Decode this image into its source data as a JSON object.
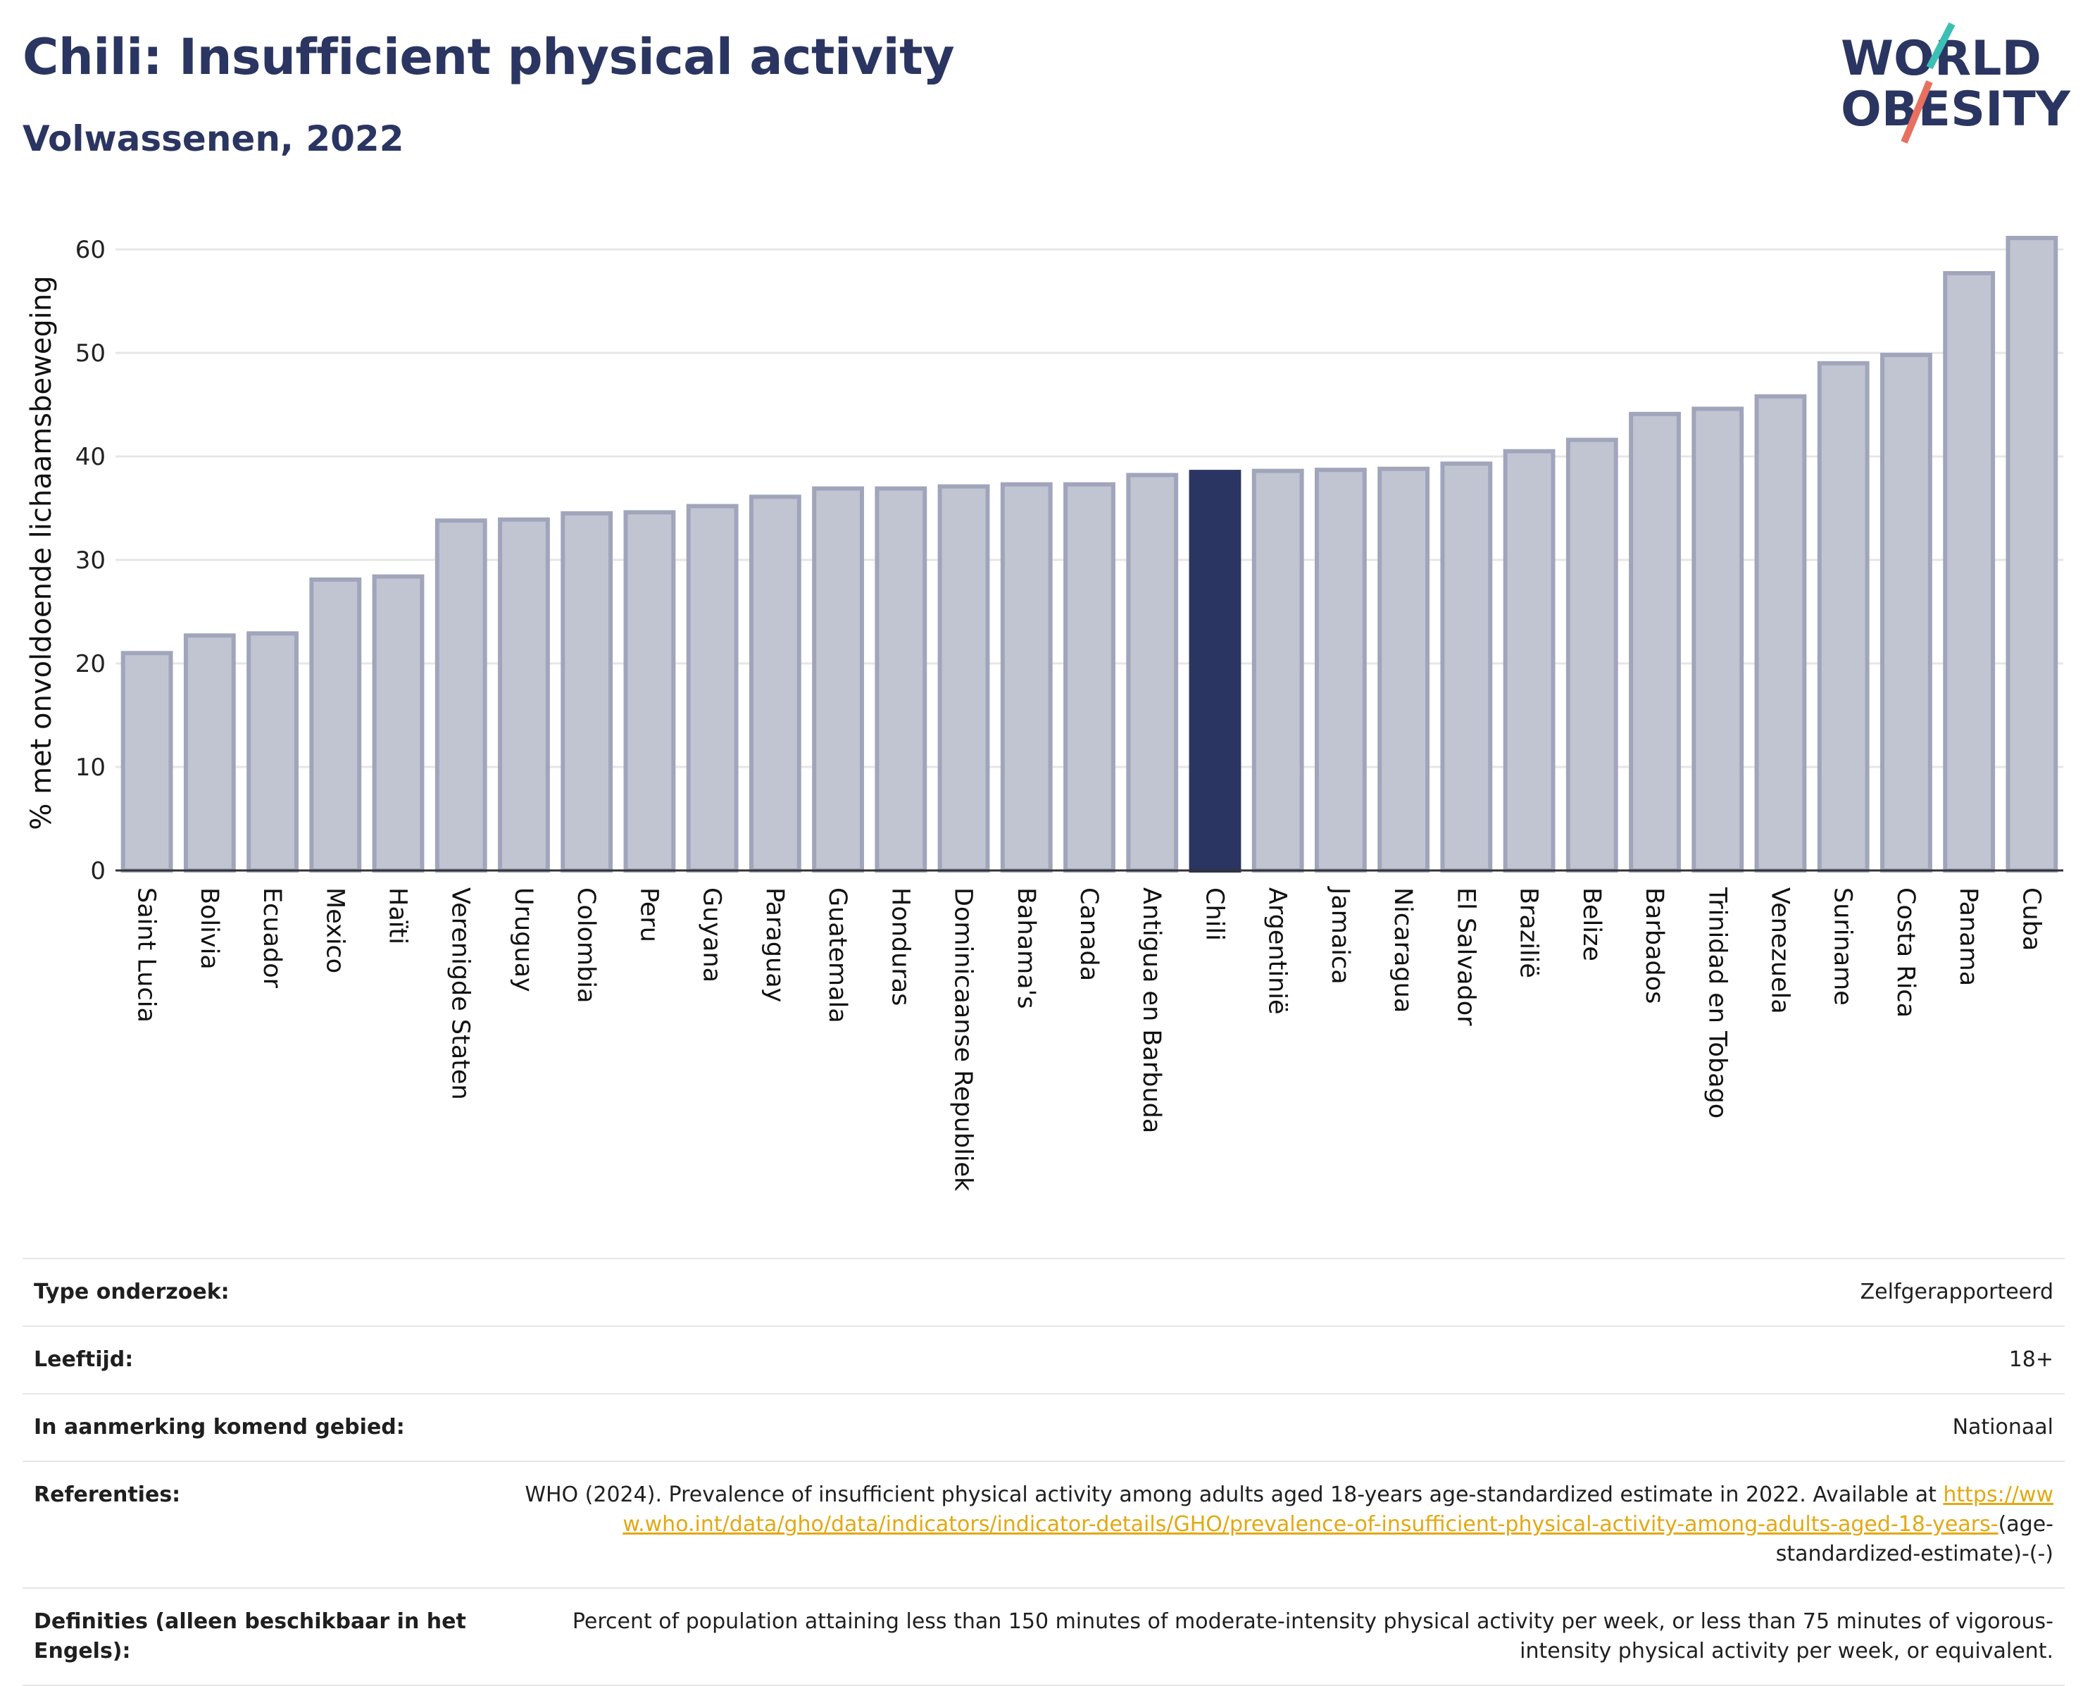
{
  "header": {
    "title": "Chili: Insufficient physical activity",
    "subtitle": "Volwassenen, 2022"
  },
  "logo": {
    "line1": "WORLD",
    "line2": "OBESITY",
    "accent_teal": "#3cbfb4",
    "accent_coral": "#e8705f",
    "text_color": "#2b3561"
  },
  "colors": {
    "bar": "#c1c4d1",
    "bar_border": "#a0a5bb",
    "highlight": "#2b3561",
    "grid": "#e6e6e6"
  },
  "chart_data": {
    "type": "bar",
    "title": "Chili: Insufficient physical activity",
    "subtitle": "Volwassenen, 2022",
    "xlabel": "",
    "ylabel": "% met onvoldoende lichaamsbeweging",
    "ylim": [
      0,
      63
    ],
    "yticks": [
      0,
      10,
      20,
      30,
      40,
      50,
      60
    ],
    "grid": true,
    "highlight": "Chili",
    "categories": [
      "Saint Lucia",
      "Bolivia",
      "Ecuador",
      "Mexico",
      "Haïti",
      "Verenigde Staten",
      "Uruguay",
      "Colombia",
      "Peru",
      "Guyana",
      "Paraguay",
      "Guatemala",
      "Honduras",
      "Dominicaanse Republiek",
      "Bahama's",
      "Canada",
      "Antigua en Barbuda",
      "Chili",
      "Argentinië",
      "Jamaica",
      "Nicaragua",
      "El Salvador",
      "Brazilië",
      "Belize",
      "Barbados",
      "Trinidad en Tobago",
      "Venezuela",
      "Suriname",
      "Costa Rica",
      "Panama",
      "Cuba"
    ],
    "values": [
      21.0,
      22.7,
      22.9,
      28.1,
      28.4,
      33.8,
      33.9,
      34.5,
      34.6,
      35.2,
      36.1,
      36.9,
      36.9,
      37.1,
      37.3,
      37.3,
      38.2,
      38.5,
      38.6,
      38.7,
      38.8,
      39.3,
      40.5,
      41.6,
      44.1,
      44.6,
      45.8,
      49.0,
      49.8,
      57.7,
      61.1
    ]
  },
  "meta": {
    "survey_type_label": "Type onderzoek:",
    "survey_type_value": "Zelfgerapporteerd",
    "age_label": "Leeftijd:",
    "age_value": "18+",
    "area_label": "In aanmerking komend gebied:",
    "area_value": "Nationaal",
    "references_label": "Referenties:",
    "references_text": "WHO (2024). Prevalence of insufficient physical activity among adults aged 18-years age-standardized estimate in 2022. Available at",
    "references_link": "https://www.who.int/data/gho/data/indicators/indicator-details/GHO/prevalence-of-insufficient-physical-activity-among-adults-aged-18-years-",
    "references_suffix": "(age-standardized-estimate)-(-)",
    "definitions_label": "Definities (alleen beschikbaar in het Engels):",
    "definitions_value": "Percent of population attaining less than 150 minutes of moderate-intensity physical activity per week, or less than 75 minutes of vigorous-intensity physical activity per week, or equivalent."
  }
}
